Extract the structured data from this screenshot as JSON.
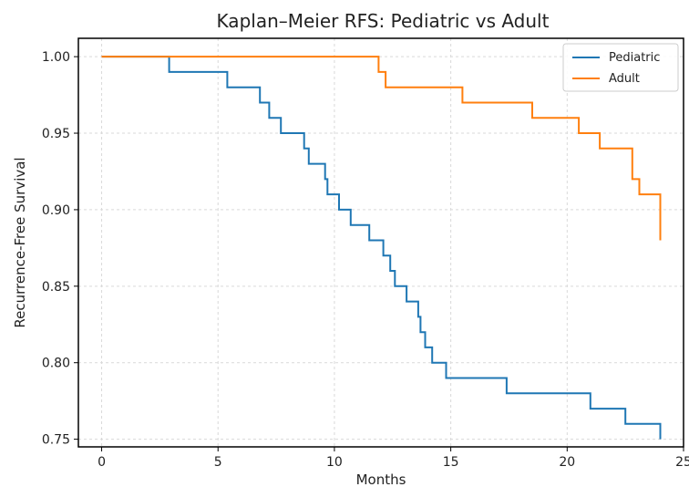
{
  "chart_data": {
    "type": "line",
    "title": "Kaplan–Meier RFS: Pediatric vs Adult",
    "xlabel": "Months",
    "ylabel": "Recurrence-Free Survival",
    "xlim": [
      -1,
      25
    ],
    "ylim": [
      0.745,
      1.012
    ],
    "xticks": [
      0,
      5,
      10,
      15,
      20,
      25
    ],
    "yticks": [
      0.75,
      0.8,
      0.85,
      0.9,
      0.95,
      1.0
    ],
    "xtick_labels": [
      "0",
      "5",
      "10",
      "15",
      "20",
      "25"
    ],
    "ytick_labels": [
      "0.75",
      "0.80",
      "0.85",
      "0.90",
      "0.95",
      "1.00"
    ],
    "grid": true,
    "legend_position": "top-right",
    "step": "post",
    "series": [
      {
        "name": "Pediatric",
        "color": "#1f77b4",
        "x": [
          0,
          2.9,
          5.4,
          6.8,
          7.2,
          7.7,
          8.7,
          8.9,
          9.6,
          9.7,
          10.2,
          10.7,
          11.5,
          12.1,
          12.4,
          12.6,
          13.1,
          13.6,
          13.7,
          13.9,
          14.2,
          14.8,
          15.5,
          17.4,
          21.0,
          22.5,
          24.0
        ],
        "y": [
          1.0,
          0.99,
          0.98,
          0.97,
          0.96,
          0.95,
          0.94,
          0.93,
          0.92,
          0.91,
          0.9,
          0.89,
          0.88,
          0.87,
          0.86,
          0.85,
          0.84,
          0.83,
          0.82,
          0.81,
          0.8,
          0.79,
          0.79,
          0.78,
          0.77,
          0.76,
          0.75
        ]
      },
      {
        "name": "Adult",
        "color": "#ff7f0e",
        "x": [
          0,
          11.9,
          12.2,
          15.5,
          18.5,
          20.5,
          21.4,
          22.8,
          23.1,
          24.0
        ],
        "y": [
          1.0,
          0.99,
          0.98,
          0.97,
          0.96,
          0.95,
          0.94,
          0.92,
          0.91,
          0.88
        ]
      }
    ]
  }
}
